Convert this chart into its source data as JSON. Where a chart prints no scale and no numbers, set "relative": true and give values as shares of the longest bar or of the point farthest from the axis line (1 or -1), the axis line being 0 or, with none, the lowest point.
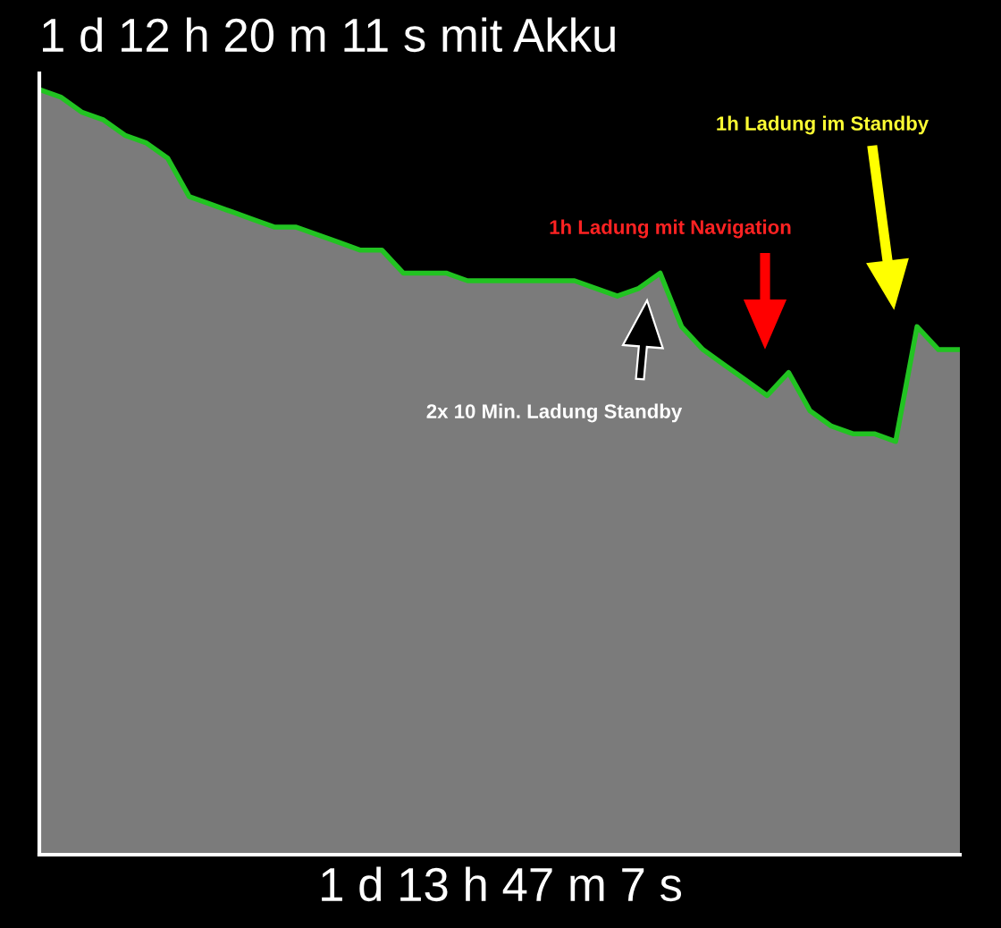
{
  "chart_data": {
    "type": "area",
    "title": "1 d 12 h 20 m 11 s mit Akku",
    "xlabel": "1 d 13 h 47 m 7 s",
    "relative": true,
    "categories": [
      null,
      null,
      null,
      null,
      null,
      null,
      null,
      null,
      null,
      null,
      null,
      null,
      null,
      null,
      null,
      null,
      null,
      null,
      null,
      null,
      null,
      null,
      null,
      null,
      null,
      null,
      null,
      null,
      null,
      null,
      null,
      null,
      null,
      null,
      null,
      null,
      null,
      null,
      null,
      null,
      null,
      null,
      null,
      null
    ],
    "series": [
      {
        "color": "#22c322",
        "values": [
          1.0,
          0.99,
          0.97,
          0.96,
          0.94,
          0.93,
          0.91,
          0.86,
          0.85,
          0.84,
          0.83,
          0.82,
          0.82,
          0.81,
          0.8,
          0.79,
          0.79,
          0.76,
          0.76,
          0.76,
          0.75,
          0.75,
          0.75,
          0.75,
          0.75,
          0.75,
          0.74,
          0.73,
          0.74,
          0.76,
          0.69,
          0.66,
          0.64,
          0.62,
          0.6,
          0.63,
          0.58,
          0.56,
          0.55,
          0.55,
          0.54,
          0.69,
          0.66,
          0.66
        ]
      }
    ],
    "annotations": [
      "1h Ladung im Standby",
      "1h Ladung mit Navigation",
      "2x 10 Min. Ladung Standby"
    ],
    "grid": false,
    "legend": false
  }
}
